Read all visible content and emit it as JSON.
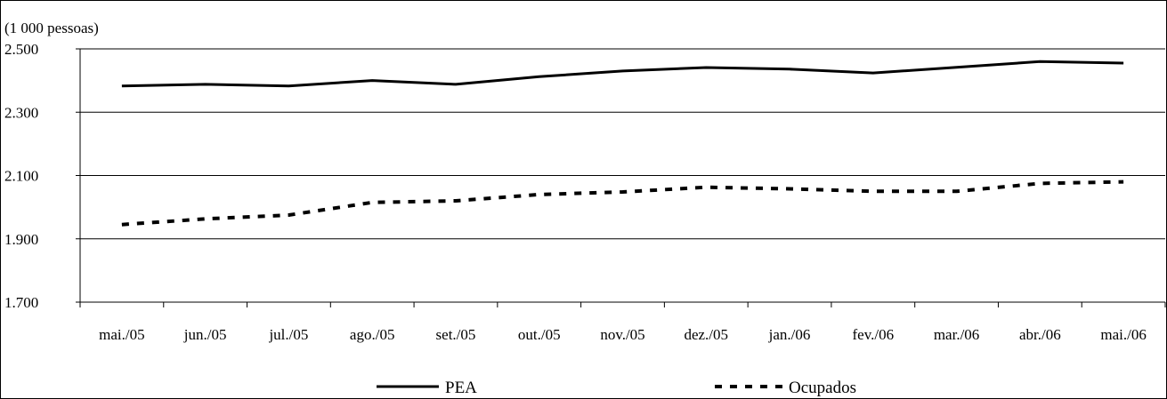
{
  "chart_data": {
    "type": "line",
    "unit_label": "(1 000 pessoas)",
    "categories": [
      "mai./05",
      "jun./05",
      "jul./05",
      "ago./05",
      "set./05",
      "out./05",
      "nov./05",
      "dez./05",
      "jan./06",
      "fev./06",
      "mar./06",
      "abr./06",
      "mai./06"
    ],
    "yticks": [
      "1.700",
      "1.900",
      "2.100",
      "2.300",
      "2.500"
    ],
    "ytick_values": [
      1700,
      1900,
      2100,
      2300,
      2500
    ],
    "ylim": [
      1700,
      2500
    ],
    "grid": true,
    "legend_position": "bottom",
    "series": [
      {
        "name": "PEA",
        "style": "solid",
        "color": "#000000",
        "values": [
          2383,
          2388,
          2383,
          2400,
          2388,
          2412,
          2430,
          2441,
          2436,
          2424,
          2442,
          2460,
          2455
        ]
      },
      {
        "name": "Ocupados",
        "style": "dashed",
        "color": "#000000",
        "values": [
          1945,
          1963,
          1975,
          2015,
          2020,
          2040,
          2048,
          2063,
          2058,
          2050,
          2050,
          2075,
          2080
        ]
      }
    ]
  }
}
